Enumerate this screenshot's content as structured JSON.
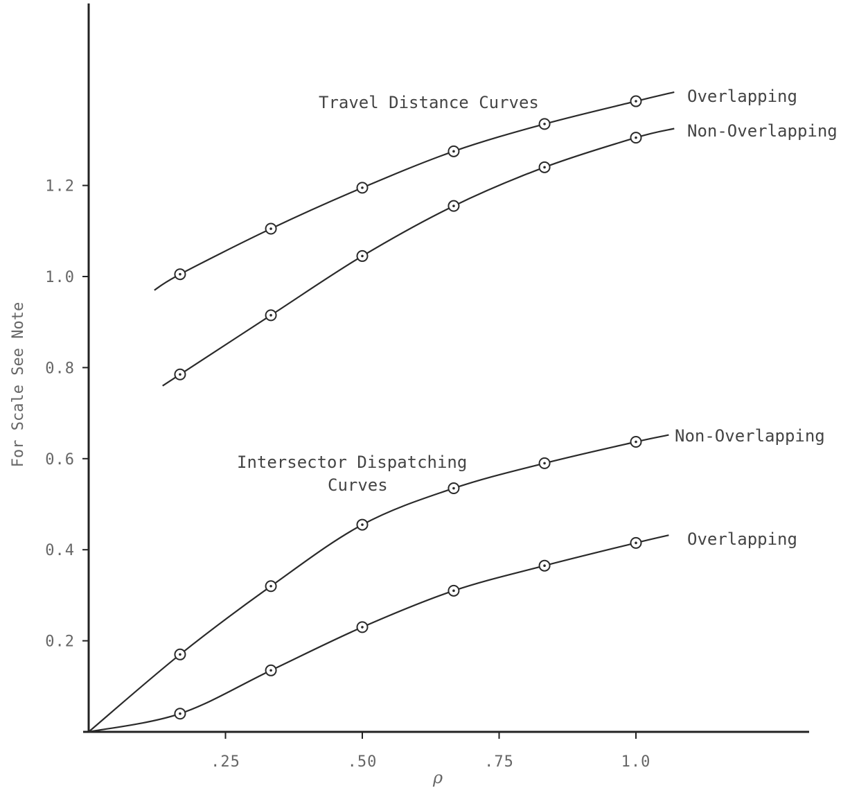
{
  "chart_data": {
    "type": "line",
    "xlabel": "ρ",
    "ylabel": "For Scale See Note",
    "xlim": [
      0,
      1.3
    ],
    "ylim": [
      0,
      1.55
    ],
    "x_ticks": [
      ".25",
      ".50",
      ".75",
      "1.0"
    ],
    "y_ticks": [
      "0.2",
      "0.4",
      "0.6",
      "0.8",
      "1.0",
      "1.2"
    ],
    "grid": false,
    "annotations": [
      "Travel Distance Curves",
      "Intersector Dispatching",
      "Curves"
    ],
    "series": [
      {
        "name": "Overlapping",
        "group": "Travel Distance Curves",
        "x": [
          0.167,
          0.333,
          0.5,
          0.667,
          0.833,
          1.0
        ],
        "values": [
          1.005,
          1.105,
          1.195,
          1.275,
          1.335,
          1.385
        ],
        "curve_start": [
          0.12,
          0.97
        ],
        "curve_end": [
          1.07,
          1.405
        ]
      },
      {
        "name": "Non-Overlapping",
        "group": "Travel Distance Curves",
        "x": [
          0.167,
          0.333,
          0.5,
          0.667,
          0.833,
          1.0
        ],
        "values": [
          0.785,
          0.915,
          1.045,
          1.155,
          1.24,
          1.305
        ],
        "curve_start": [
          0.135,
          0.76
        ],
        "curve_end": [
          1.07,
          1.325
        ]
      },
      {
        "name": "Non-Overlapping",
        "group": "Intersector Dispatching Curves",
        "x": [
          0.167,
          0.333,
          0.5,
          0.667,
          0.833,
          1.0
        ],
        "values": [
          0.17,
          0.32,
          0.455,
          0.535,
          0.59,
          0.637
        ],
        "curve_start": [
          0,
          0
        ],
        "curve_end": [
          1.06,
          0.652
        ]
      },
      {
        "name": "Overlapping",
        "group": "Intersector Dispatching Curves",
        "x": [
          0.167,
          0.333,
          0.5,
          0.667,
          0.833,
          1.0
        ],
        "values": [
          0.04,
          0.135,
          0.23,
          0.31,
          0.365,
          0.415
        ],
        "curve_start": [
          0,
          0
        ],
        "curve_end": [
          1.06,
          0.432
        ]
      }
    ]
  }
}
